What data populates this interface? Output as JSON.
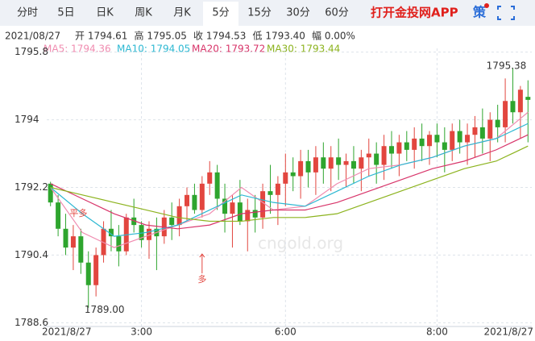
{
  "tabs": [
    "分时",
    "5日",
    "日K",
    "周K",
    "月K",
    "5分",
    "15分",
    "30分",
    "60分"
  ],
  "selected_tab": 5,
  "app_link": "打开金投网APP",
  "strategy": "策",
  "info": [
    "2021/08/27",
    "开 1794.61",
    "高 1795.05",
    "收 1794.53",
    "低 1793.40",
    "幅 0.00%"
  ],
  "chart_data": {
    "type": "candlestick",
    "watermark": "cngold.org",
    "ylim": [
      1788.5,
      1795.9
    ],
    "yticks": [
      1795.8,
      1794,
      1792.2,
      1790.4,
      1788.6
    ],
    "xlim": [
      0,
      63
    ],
    "xticks": [
      {
        "value": 0,
        "label": "2021/8/27"
      },
      {
        "value": 12,
        "label": "3:00"
      },
      {
        "value": 31,
        "label": "6:00"
      },
      {
        "value": 51,
        "label": "8:00"
      },
      {
        "value": 63,
        "label": "2021/8/27"
      }
    ],
    "grid": true,
    "up_color": "#e2463f",
    "down_color": "#2ea52e",
    "open": [
      1792.3,
      1791.8,
      1791.1,
      1790.6,
      1790.9,
      1790.2,
      1789.6,
      1790.4,
      1791.1,
      1790.9,
      1790.5,
      1791.4,
      1791.2,
      1790.8,
      1791.1,
      1790.9,
      1791.4,
      1791.2,
      1791.7,
      1792.0,
      1791.6,
      1792.3,
      1792.6,
      1791.9,
      1791.5,
      1791.8,
      1791.3,
      1791.6,
      1791.4,
      1792.1,
      1792.0,
      1792.3,
      1792.6,
      1792.5,
      1792.9,
      1792.6,
      1793.0,
      1792.7,
      1793.0,
      1792.8,
      1792.9,
      1792.7,
      1793.0,
      1793.1,
      1792.8,
      1793.3,
      1793.1,
      1793.4,
      1793.2,
      1793.5,
      1793.3,
      1793.6,
      1793.4,
      1793.2,
      1793.7,
      1793.4,
      1793.6,
      1793.8,
      1793.5,
      1794.0,
      1793.8,
      1794.5,
      1794.2,
      1794.61
    ],
    "high": [
      1792.35,
      1792.0,
      1791.5,
      1791.2,
      1791.1,
      1790.5,
      1790.6,
      1791.3,
      1791.6,
      1791.2,
      1791.5,
      1791.9,
      1791.3,
      1791.3,
      1791.4,
      1791.6,
      1791.8,
      1791.9,
      1792.2,
      1792.3,
      1792.5,
      1792.9,
      1792.8,
      1792.3,
      1792.0,
      1792.4,
      1791.9,
      1792.0,
      1792.3,
      1792.8,
      1792.5,
      1793.1,
      1793.0,
      1793.2,
      1793.2,
      1793.3,
      1793.4,
      1793.3,
      1793.5,
      1793.1,
      1793.3,
      1793.2,
      1793.5,
      1793.4,
      1793.6,
      1793.7,
      1793.6,
      1793.7,
      1793.8,
      1793.9,
      1793.7,
      1793.9,
      1793.8,
      1793.9,
      1794.0,
      1793.9,
      1794.1,
      1794.3,
      1794.2,
      1794.4,
      1795.1,
      1795.38,
      1794.9,
      1795.05
    ],
    "low": [
      1791.7,
      1790.9,
      1790.4,
      1790.0,
      1789.9,
      1789.0,
      1789.3,
      1790.2,
      1790.5,
      1790.1,
      1790.4,
      1791.0,
      1790.6,
      1790.3,
      1790.0,
      1790.7,
      1790.8,
      1790.9,
      1791.3,
      1791.5,
      1791.4,
      1792.0,
      1791.6,
      1791.0,
      1790.6,
      1791.2,
      1790.5,
      1791.0,
      1791.1,
      1791.5,
      1791.2,
      1791.7,
      1792.1,
      1791.9,
      1792.2,
      1792.0,
      1792.3,
      1792.1,
      1792.4,
      1792.2,
      1792.3,
      1792.1,
      1792.5,
      1792.3,
      1792.4,
      1792.7,
      1792.5,
      1792.9,
      1792.7,
      1792.9,
      1792.8,
      1793.0,
      1792.6,
      1792.9,
      1793.1,
      1792.8,
      1793.0,
      1793.1,
      1792.9,
      1793.4,
      1793.4,
      1793.9,
      1793.5,
      1793.4
    ],
    "close": [
      1791.8,
      1791.1,
      1790.6,
      1790.9,
      1790.2,
      1789.6,
      1790.4,
      1791.1,
      1790.9,
      1790.5,
      1791.4,
      1791.2,
      1790.8,
      1791.1,
      1790.9,
      1791.4,
      1791.2,
      1791.7,
      1792.0,
      1791.6,
      1792.3,
      1792.6,
      1791.9,
      1791.5,
      1791.8,
      1791.3,
      1791.6,
      1791.4,
      1792.1,
      1792.0,
      1792.3,
      1792.6,
      1792.5,
      1792.9,
      1792.6,
      1793.0,
      1792.7,
      1793.0,
      1792.8,
      1792.9,
      1792.7,
      1793.0,
      1793.1,
      1792.8,
      1793.3,
      1793.1,
      1793.4,
      1793.2,
      1793.5,
      1793.3,
      1793.6,
      1793.4,
      1793.2,
      1793.7,
      1793.4,
      1793.6,
      1793.8,
      1793.5,
      1794.0,
      1793.8,
      1794.5,
      1794.2,
      1794.8,
      1794.53
    ],
    "ma_series": [
      {
        "name": "MA5: 1794.36",
        "color": "#f08cb0",
        "values": [
          1792.2,
          1791.0,
          1790.6,
          1790.9,
          1791.2,
          1791.5,
          1792.2,
          1791.6,
          1791.7,
          1792.3,
          1792.7,
          1792.8,
          1793.0,
          1793.3,
          1793.5,
          1794.2
        ]
      },
      {
        "name": "MA10: 1794.05",
        "color": "#2db8d2",
        "values": [
          1792.2,
          1791.5,
          1790.9,
          1791.0,
          1791.2,
          1791.6,
          1792.0,
          1791.8,
          1791.7,
          1792.1,
          1792.5,
          1792.8,
          1793.0,
          1793.3,
          1793.5,
          1793.9
        ]
      },
      {
        "name": "MA20: 1793.72",
        "color": "#d8356a",
        "values": [
          1792.3,
          1791.9,
          1791.5,
          1791.2,
          1791.1,
          1791.2,
          1791.5,
          1791.6,
          1791.6,
          1791.8,
          1792.1,
          1792.4,
          1792.7,
          1792.9,
          1793.2,
          1793.6
        ]
      },
      {
        "name": "MA30: 1793.44",
        "color": "#8cb31e",
        "values": [
          1792.2,
          1792.0,
          1791.8,
          1791.6,
          1791.4,
          1791.3,
          1791.3,
          1791.4,
          1791.4,
          1791.5,
          1791.8,
          1792.1,
          1792.4,
          1792.7,
          1792.9,
          1793.3
        ]
      }
    ],
    "annotations": [
      {
        "text": "1795.38",
        "x": 61,
        "y": 1795.38
      },
      {
        "text": "1789.00",
        "x": 5,
        "y": 1789.0
      },
      {
        "text": "平多",
        "x": 4,
        "y": 1791.5
      },
      {
        "text": "多",
        "x": 20,
        "y": 1790.3
      }
    ]
  }
}
